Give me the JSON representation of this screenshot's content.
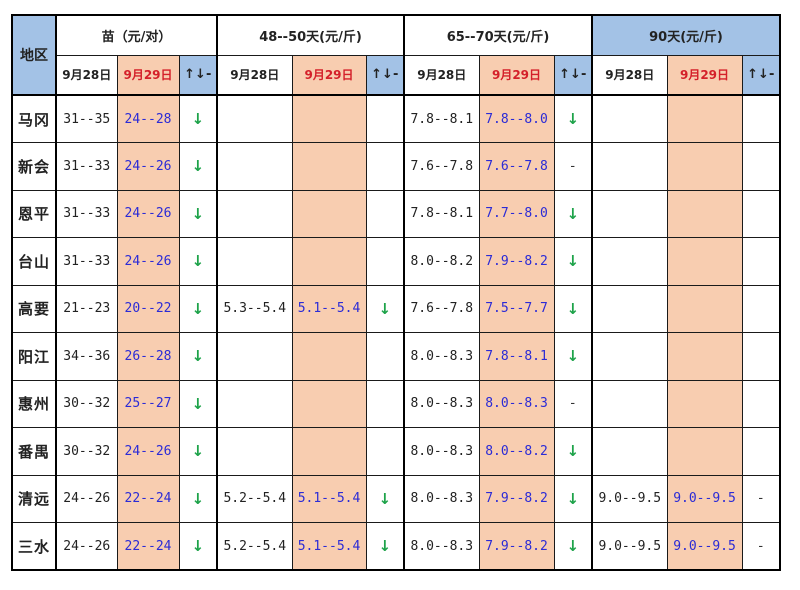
{
  "header": {
    "region": "地区",
    "groups": [
      "苗（元/对）",
      "48--50天(元/斤)",
      "65--70天(元/斤)",
      "90天(元/斤)"
    ],
    "date_prev": "9月28日",
    "date_today": "9月29日",
    "trend": "↑↓-"
  },
  "rows": [
    {
      "region": "马冈",
      "seed": [
        "31--35",
        "24--28",
        "↓"
      ],
      "d48": [
        "",
        "",
        ""
      ],
      "d65": [
        "7.8--8.1",
        "7.8--8.0",
        "↓"
      ],
      "d90": [
        "",
        "",
        ""
      ]
    },
    {
      "region": "新会",
      "seed": [
        "31--33",
        "24--26",
        "↓"
      ],
      "d48": [
        "",
        "",
        ""
      ],
      "d65": [
        "7.6--7.8",
        "7.6--7.8",
        "-"
      ],
      "d90": [
        "",
        "",
        ""
      ]
    },
    {
      "region": "恩平",
      "seed": [
        "31--33",
        "24--26",
        "↓"
      ],
      "d48": [
        "",
        "",
        ""
      ],
      "d65": [
        "7.8--8.1",
        "7.7--8.0",
        "↓"
      ],
      "d90": [
        "",
        "",
        ""
      ]
    },
    {
      "region": "台山",
      "seed": [
        "31--33",
        "24--26",
        "↓"
      ],
      "d48": [
        "",
        "",
        ""
      ],
      "d65": [
        "8.0--8.2",
        "7.9--8.2",
        "↓"
      ],
      "d90": [
        "",
        "",
        ""
      ]
    },
    {
      "region": "高要",
      "seed": [
        "21--23",
        "20--22",
        "↓"
      ],
      "d48": [
        "5.3--5.4",
        "5.1--5.4",
        "↓"
      ],
      "d65": [
        "7.6--7.8",
        "7.5--7.7",
        "↓"
      ],
      "d90": [
        "",
        "",
        ""
      ]
    },
    {
      "region": "阳江",
      "seed": [
        "34--36",
        "26--28",
        "↓"
      ],
      "d48": [
        "",
        "",
        ""
      ],
      "d65": [
        "8.0--8.3",
        "7.8--8.1",
        "↓"
      ],
      "d90": [
        "",
        "",
        ""
      ]
    },
    {
      "region": "惠州",
      "seed": [
        "30--32",
        "25--27",
        "↓"
      ],
      "d48": [
        "",
        "",
        ""
      ],
      "d65": [
        "8.0--8.3",
        "8.0--8.3",
        "-"
      ],
      "d90": [
        "",
        "",
        ""
      ]
    },
    {
      "region": "番禺",
      "seed": [
        "30--32",
        "24--26",
        "↓"
      ],
      "d48": [
        "",
        "",
        ""
      ],
      "d65": [
        "8.0--8.3",
        "8.0--8.2",
        "↓"
      ],
      "d90": [
        "",
        "",
        ""
      ]
    },
    {
      "region": "清远",
      "seed": [
        "24--26",
        "22--24",
        "↓"
      ],
      "d48": [
        "5.2--5.4",
        "5.1--5.4",
        "↓"
      ],
      "d65": [
        "8.0--8.3",
        "7.9--8.2",
        "↓"
      ],
      "d90": [
        "9.0--9.5",
        "9.0--9.5",
        "-"
      ]
    },
    {
      "region": "三水",
      "seed": [
        "24--26",
        "22--24",
        "↓"
      ],
      "d48": [
        "5.2--5.4",
        "5.1--5.4",
        "↓"
      ],
      "d65": [
        "8.0--8.3",
        "7.9--8.2",
        "↓"
      ],
      "d90": [
        "9.0--9.5",
        "9.0--9.5",
        "-"
      ]
    }
  ]
}
